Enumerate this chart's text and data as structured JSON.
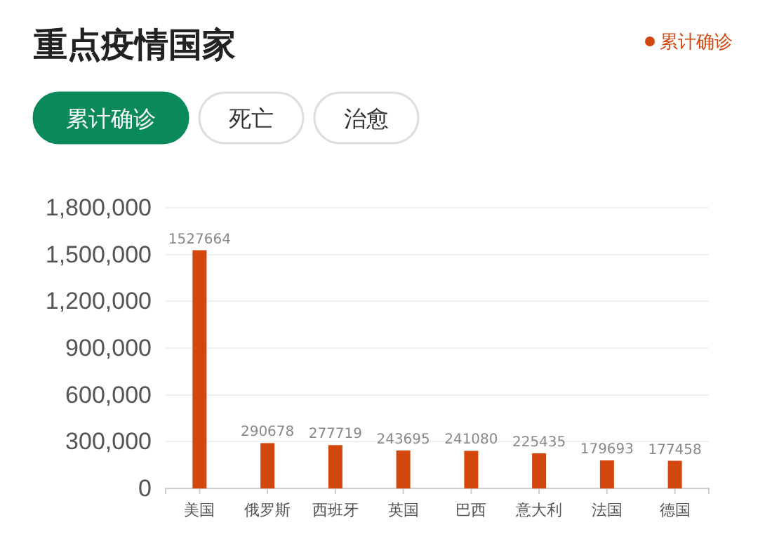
{
  "chart_data": {
    "type": "bar",
    "title": "重点疫情国家",
    "annotations": [
      "累计确诊",
      "死亡",
      "治愈"
    ],
    "categories": [
      "美国",
      "俄罗斯",
      "西班牙",
      "英国",
      "巴西",
      "意大利",
      "法国",
      "德国"
    ],
    "series": [
      {
        "name": "累计确诊",
        "color": "#d2470d",
        "values": [
          1527664,
          290678,
          277719,
          243695,
          241080,
          225435,
          179693,
          177458
        ]
      }
    ],
    "ylim": [
      0,
      1800000
    ],
    "yticks": [
      0,
      {
        "value": 300000,
        "label": "300,000"
      },
      {
        "value": 600000,
        "label": "600,000"
      },
      {
        "value": 900000,
        "label": "900,000"
      },
      {
        "value": 1200000,
        "label": "1,200,000"
      },
      {
        "value": 1500000,
        "label": "1,500,000"
      },
      {
        "value": 1800000,
        "label": "1,800,000"
      }
    ],
    "grid": "y",
    "legend": "top right",
    "data_labels": true
  }
}
